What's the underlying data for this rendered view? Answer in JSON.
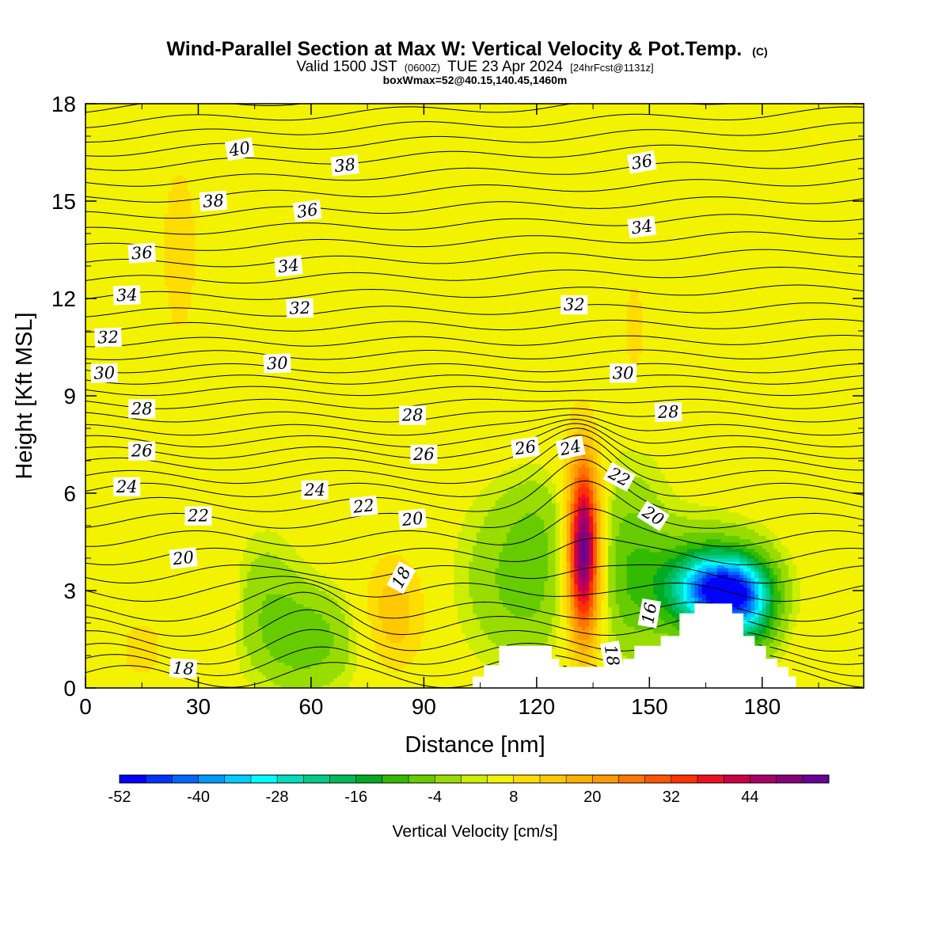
{
  "chart_data": {
    "type": "heatmap",
    "title": "Wind-Parallel Section at Max W: Vertical Velocity & Pot.Temp.",
    "title_suffix": "(C)",
    "subtitle_main_a": "Valid 1500 JST",
    "subtitle_small_a": "(0600Z)",
    "subtitle_main_b": "TUE 23 Apr 2024",
    "subtitle_small_b": "[24hrFcst@1131z]",
    "subtitle2": "boxWmax=52@40.15,140.45,1460m",
    "xlabel": "Distance [nm]",
    "ylabel": "Height [Kft MSL]",
    "xlim": [
      0,
      207
    ],
    "ylim": [
      0,
      18
    ],
    "x_ticks": [
      "0",
      "30",
      "60",
      "90",
      "120",
      "150",
      "180"
    ],
    "x_tick_values": [
      0,
      30,
      60,
      90,
      120,
      150,
      180
    ],
    "y_ticks": [
      "0",
      "3",
      "6",
      "9",
      "12",
      "15",
      "18"
    ],
    "y_tick_values": [
      0,
      3,
      6,
      9,
      12,
      15,
      18
    ],
    "background_color": "#f3f300",
    "colorbar": {
      "label": "Vertical Velocity [cm/s]",
      "tick_labels": [
        "-52",
        "-40",
        "-28",
        "-16",
        "-4",
        "8",
        "20",
        "32",
        "44"
      ],
      "colors": [
        "#0000ff",
        "#0033ff",
        "#0066ff",
        "#0099ff",
        "#00ccff",
        "#00ffff",
        "#00ddbb",
        "#00cc88",
        "#00bb55",
        "#00aa22",
        "#33bb00",
        "#66cc00",
        "#99dd00",
        "#ccee00",
        "#f3f300",
        "#ffdd00",
        "#ffc800",
        "#ffb000",
        "#ff9900",
        "#ff7700",
        "#ff5500",
        "#ff3300",
        "#ee1122",
        "#cc0044",
        "#aa0066",
        "#880077",
        "#660099"
      ]
    },
    "terrain_nm_kft": [
      [
        0,
        0
      ],
      [
        103,
        0
      ],
      [
        103,
        0.35
      ],
      [
        106,
        0.35
      ],
      [
        106,
        0.7
      ],
      [
        110,
        0.7
      ],
      [
        110,
        1.3
      ],
      [
        124,
        1.3
      ],
      [
        124,
        0.9
      ],
      [
        126,
        0.9
      ],
      [
        126,
        0.65
      ],
      [
        143,
        0.65
      ],
      [
        143,
        0.9
      ],
      [
        146,
        0.9
      ],
      [
        146,
        1.3
      ],
      [
        153,
        1.3
      ],
      [
        153,
        1.6
      ],
      [
        158,
        1.6
      ],
      [
        158,
        2.3
      ],
      [
        162,
        2.3
      ],
      [
        162,
        2.6
      ],
      [
        172,
        2.6
      ],
      [
        172,
        2.3
      ],
      [
        175,
        2.3
      ],
      [
        175,
        1.6
      ],
      [
        178,
        1.6
      ],
      [
        178,
        1.3
      ],
      [
        181,
        1.3
      ],
      [
        181,
        0.9
      ],
      [
        184,
        0.9
      ],
      [
        184,
        0.65
      ],
      [
        187,
        0.65
      ],
      [
        187,
        0.35
      ],
      [
        189,
        0.35
      ],
      [
        189,
        0
      ],
      [
        207,
        0
      ]
    ],
    "w_features": [
      {
        "x": 132.5,
        "z": 4.3,
        "sx": 2.8,
        "sz": 1.8,
        "w": 46
      },
      {
        "x": 132.5,
        "z": 4.0,
        "sx": 5.0,
        "sz": 2.6,
        "w": 10
      },
      {
        "x": 117,
        "z": 3.3,
        "sx": 11,
        "sz": 1.7,
        "w": -10
      },
      {
        "x": 144,
        "z": 4.0,
        "sx": 7,
        "sz": 2.2,
        "w": -9
      },
      {
        "x": 123,
        "z": 5.4,
        "sx": 9,
        "sz": 1.0,
        "w": -4
      },
      {
        "x": 169,
        "z": 3.0,
        "sx": 7.5,
        "sz": 0.75,
        "w": -46
      },
      {
        "x": 162,
        "z": 3.2,
        "sx": 11,
        "sz": 1.2,
        "w": -14
      },
      {
        "x": 177,
        "z": 2.4,
        "sx": 5,
        "sz": 1.0,
        "w": -18
      },
      {
        "x": 58,
        "z": 1.5,
        "sx": 10,
        "sz": 1.1,
        "w": -11
      },
      {
        "x": 48,
        "z": 3.2,
        "sx": 6,
        "sz": 1.2,
        "w": -5
      },
      {
        "x": 82,
        "z": 2.3,
        "sx": 6,
        "sz": 1.3,
        "w": 11
      },
      {
        "x": 15,
        "z": 1.2,
        "sx": 5,
        "sz": 0.8,
        "w": 6
      },
      {
        "x": 36,
        "z": 2.8,
        "sx": 3,
        "sz": 1.2,
        "w": 5
      },
      {
        "x": 25,
        "z": 13.5,
        "sx": 6,
        "sz": 3.5,
        "w": 5
      },
      {
        "x": 130,
        "z": 13,
        "sx": 3,
        "sz": 2.5,
        "w": 4
      },
      {
        "x": 146,
        "z": 11,
        "sx": 3,
        "sz": 2.0,
        "w": 5
      },
      {
        "x": 180,
        "z": 16,
        "sx": 5,
        "sz": 2.0,
        "w": 4
      },
      {
        "x": 205,
        "z": 9.5,
        "sx": 3,
        "sz": 1.5,
        "w": 4
      },
      {
        "x": 195,
        "z": 6.5,
        "sx": 6,
        "sz": 0.8,
        "w": 4
      }
    ],
    "theta_line_heights_kft": [
      0.35,
      0.7,
      1.05,
      1.45,
      1.9,
      2.35,
      2.95,
      3.5,
      4.05,
      4.6,
      5.15,
      5.65,
      6.1,
      6.5,
      6.9,
      7.25,
      7.6,
      7.95,
      8.35,
      8.75,
      9.15,
      9.5,
      9.85,
      10.25,
      10.65,
      11.1,
      11.55,
      12.05,
      12.55,
      13.05,
      13.55,
      14.05,
      14.55,
      15.05,
      15.55,
      16.05,
      16.5,
      16.95,
      17.4,
      17.85
    ],
    "theta_labels": [
      {
        "text": "40",
        "x": 41,
        "z": 16.6,
        "rot": -10
      },
      {
        "text": "38",
        "x": 69,
        "z": 16.1,
        "rot": -6
      },
      {
        "text": "36",
        "x": 148,
        "z": 16.2,
        "rot": -10
      },
      {
        "text": "38",
        "x": 34,
        "z": 15.0,
        "rot": -4
      },
      {
        "text": "36",
        "x": 59,
        "z": 14.7,
        "rot": -8
      },
      {
        "text": "34",
        "x": 148,
        "z": 14.2,
        "rot": -8
      },
      {
        "text": "36",
        "x": 15,
        "z": 13.4,
        "rot": -4
      },
      {
        "text": "34",
        "x": 54,
        "z": 13.0,
        "rot": -6
      },
      {
        "text": "34",
        "x": 11,
        "z": 12.1,
        "rot": -2
      },
      {
        "text": "32",
        "x": 57,
        "z": 11.7,
        "rot": -2
      },
      {
        "text": "32",
        "x": 130,
        "z": 11.8,
        "rot": 0
      },
      {
        "text": "32",
        "x": 6,
        "z": 10.8,
        "rot": -2
      },
      {
        "text": "30",
        "x": 5,
        "z": 9.7,
        "rot": -2
      },
      {
        "text": "30",
        "x": 51,
        "z": 10.0,
        "rot": -2
      },
      {
        "text": "30",
        "x": 143,
        "z": 9.7,
        "rot": 0
      },
      {
        "text": "28",
        "x": 15,
        "z": 8.6,
        "rot": 0
      },
      {
        "text": "28",
        "x": 87,
        "z": 8.4,
        "rot": 0
      },
      {
        "text": "28",
        "x": 155,
        "z": 8.5,
        "rot": -2
      },
      {
        "text": "26",
        "x": 15,
        "z": 7.3,
        "rot": 0
      },
      {
        "text": "26",
        "x": 90,
        "z": 7.2,
        "rot": 0
      },
      {
        "text": "26",
        "x": 117,
        "z": 7.4,
        "rot": -8
      },
      {
        "text": "24",
        "x": 129,
        "z": 7.4,
        "rot": -12
      },
      {
        "text": "22",
        "x": 142,
        "z": 6.5,
        "rot": 28
      },
      {
        "text": "24",
        "x": 11,
        "z": 6.2,
        "rot": 0
      },
      {
        "text": "24",
        "x": 61,
        "z": 6.1,
        "rot": 0
      },
      {
        "text": "22",
        "x": 30,
        "z": 5.3,
        "rot": 0
      },
      {
        "text": "22",
        "x": 74,
        "z": 5.6,
        "rot": -6
      },
      {
        "text": "20",
        "x": 87,
        "z": 5.2,
        "rot": -6
      },
      {
        "text": "20",
        "x": 151,
        "z": 5.3,
        "rot": 32
      },
      {
        "text": "20",
        "x": 26,
        "z": 4.0,
        "rot": -6
      },
      {
        "text": "18",
        "x": 84,
        "z": 3.4,
        "rot": -62
      },
      {
        "text": "18",
        "x": 26,
        "z": 0.6,
        "rot": 4
      },
      {
        "text": "18",
        "x": 140,
        "z": 1.0,
        "rot": 80
      },
      {
        "text": "16",
        "x": 150,
        "z": 2.3,
        "rot": -80
      }
    ]
  }
}
